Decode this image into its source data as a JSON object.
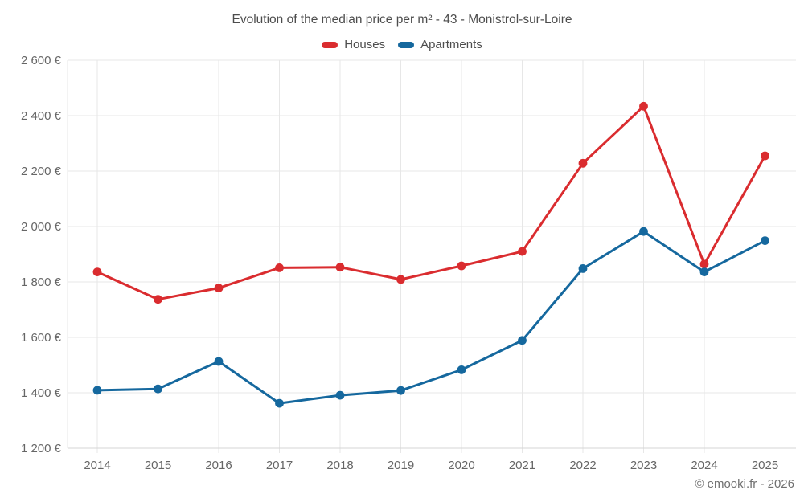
{
  "chart": {
    "title": "Evolution of the median price per m² - 43 - Monistrol-sur-Loire",
    "copyright": "© emooki.fr - 2026"
  },
  "chart_data": {
    "type": "line",
    "title": "Evolution of the median price per m² - 43 - Monistrol-sur-Loire",
    "categories": [
      "2014",
      "2015",
      "2016",
      "2017",
      "2018",
      "2019",
      "2020",
      "2021",
      "2022",
      "2023",
      "2024",
      "2025"
    ],
    "series": [
      {
        "name": "Houses",
        "color": "#da2c2f",
        "values": [
          1836,
          1737,
          1778,
          1851,
          1853,
          1809,
          1858,
          1910,
          2228,
          2434,
          1864,
          2255
        ]
      },
      {
        "name": "Apartments",
        "color": "#15689e",
        "values": [
          1409,
          1414,
          1513,
          1362,
          1391,
          1408,
          1483,
          1589,
          1848,
          1982,
          1836,
          1949
        ]
      }
    ],
    "ylim": [
      1200,
      2600
    ],
    "ytick_step": 200,
    "ytick_labels": [
      "1 200 €",
      "1 400 €",
      "1 600 €",
      "1 800 €",
      "2 000 €",
      "2 200 €",
      "2 400 €",
      "2 600 €"
    ],
    "grid": true,
    "legend_position": "top",
    "xlabel": "",
    "ylabel": ""
  }
}
